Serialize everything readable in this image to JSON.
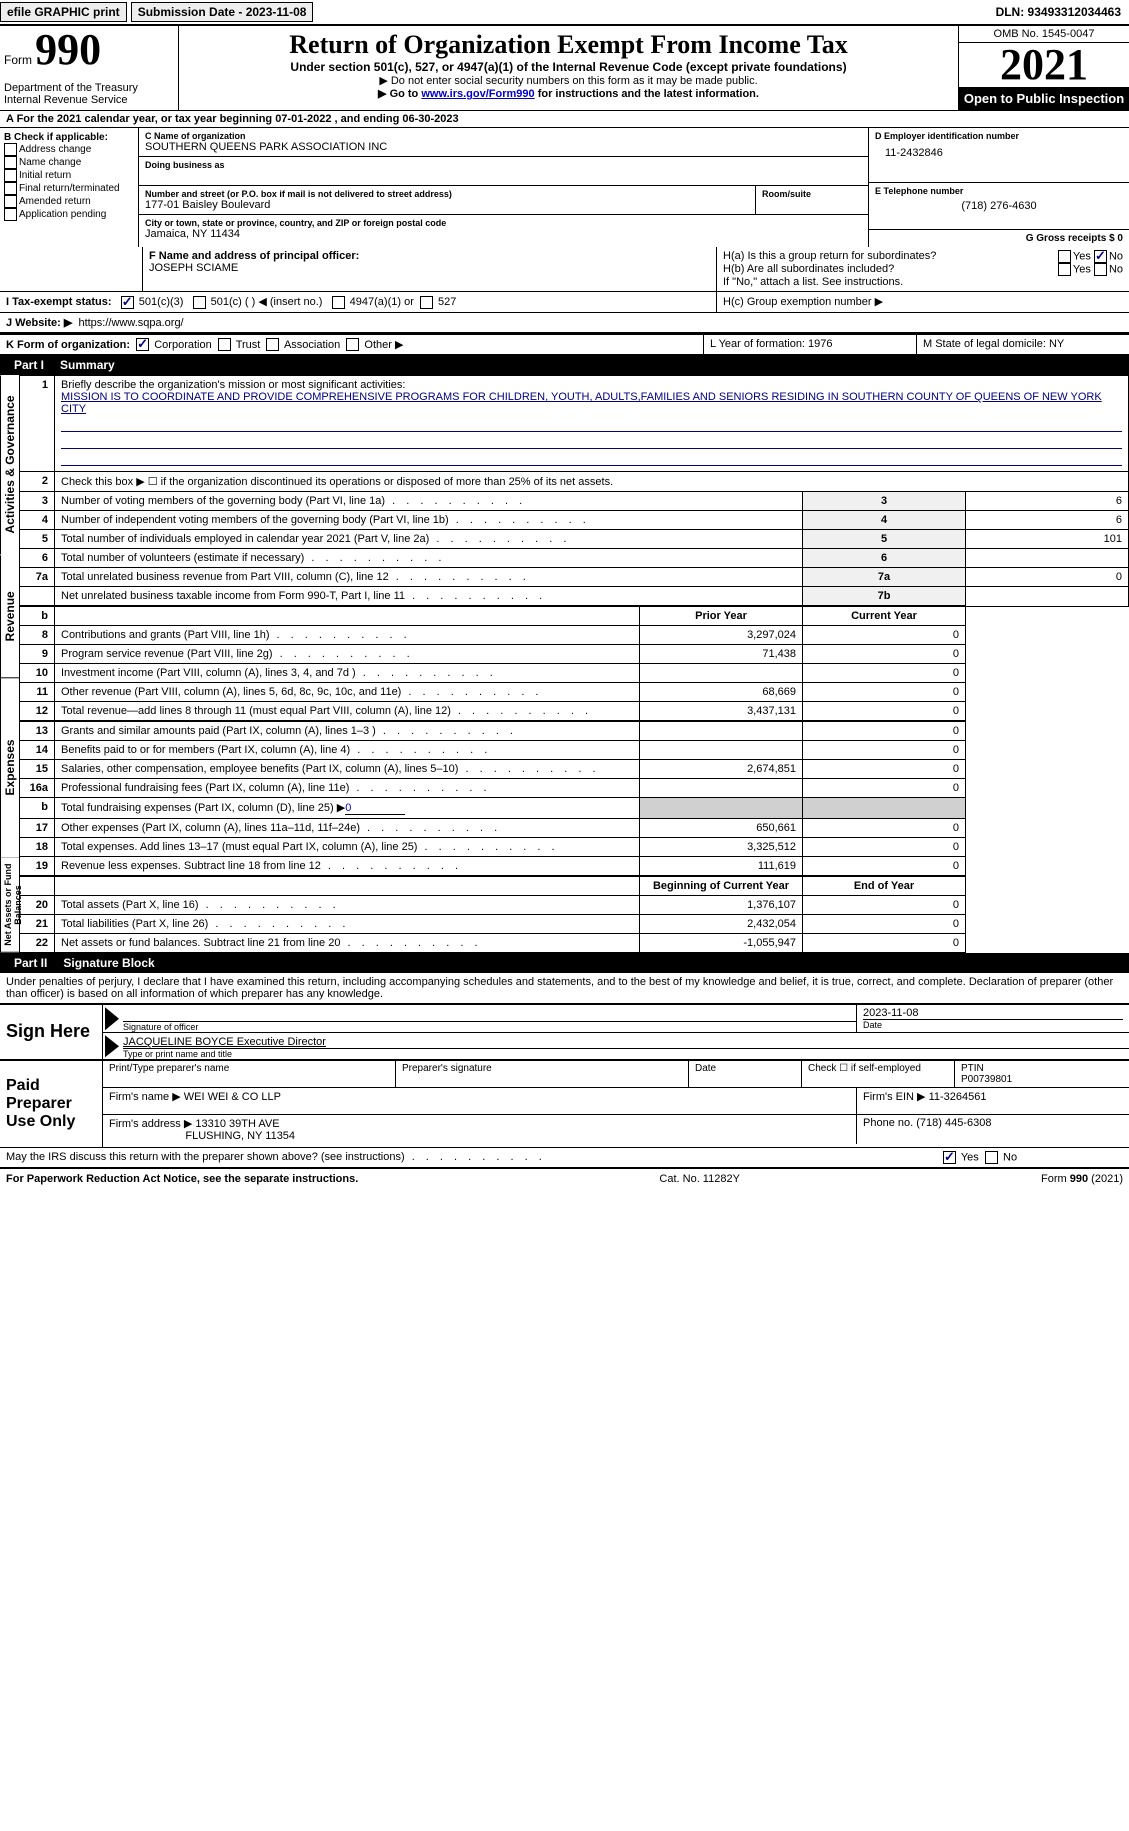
{
  "topbar": {
    "efile": "efile GRAPHIC print",
    "submission_label": "Submission Date - 2023-11-08",
    "dln": "DLN: 93493312034463"
  },
  "header": {
    "form_word": "Form",
    "form_num": "990",
    "dept": "Department of the Treasury",
    "irs": "Internal Revenue Service",
    "title": "Return of Organization Exempt From Income Tax",
    "sub": "Under section 501(c), 527, or 4947(a)(1) of the Internal Revenue Code (except private foundations)",
    "note1": "▶ Do not enter social security numbers on this form as it may be made public.",
    "note2_pre": "▶ Go to ",
    "note2_link": "www.irs.gov/Form990",
    "note2_post": " for instructions and the latest information.",
    "omb": "OMB No. 1545-0047",
    "year": "2021",
    "open": "Open to Public Inspection"
  },
  "lineA": "A  For the 2021 calendar year, or tax year beginning 07-01-2022   , and ending 06-30-2023",
  "colB": {
    "title": "B Check if applicable:",
    "items": [
      "Address change",
      "Name change",
      "Initial return",
      "Final return/terminated",
      "Amended return",
      "Application pending"
    ]
  },
  "colC": {
    "name_label": "C Name of organization",
    "name": "SOUTHERN QUEENS PARK ASSOCIATION INC",
    "dba_label": "Doing business as",
    "addr_label": "Number and street (or P.O. box if mail is not delivered to street address)",
    "room_label": "Room/suite",
    "addr": "177-01 Baisley Boulevard",
    "city_label": "City or town, state or province, country, and ZIP or foreign postal code",
    "city": "Jamaica, NY  11434"
  },
  "colD": {
    "ein_label": "D Employer identification number",
    "ein": "11-2432846",
    "phone_label": "E Telephone number",
    "phone": "(718) 276-4630",
    "gross_label": "G Gross receipts $ 0"
  },
  "rowF": {
    "label": "F Name and address of principal officer:",
    "name": "JOSEPH SCIAME"
  },
  "rowH": {
    "ha": "H(a)  Is this a group return for subordinates?",
    "hb": "H(b)  Are all subordinates included?",
    "hb_note": "If \"No,\" attach a list. See instructions.",
    "hc": "H(c)  Group exemption number ▶",
    "yes": "Yes",
    "no": "No"
  },
  "rowI": {
    "label": "I  Tax-exempt status:",
    "opt1": "501(c)(3)",
    "opt2": "501(c) (  ) ◀ (insert no.)",
    "opt3": "4947(a)(1) or",
    "opt4": "527"
  },
  "rowJ": {
    "label": "J  Website: ▶",
    "val": "https://www.sqpa.org/"
  },
  "rowK": {
    "label": "K Form of organization:",
    "corp": "Corporation",
    "trust": "Trust",
    "assoc": "Association",
    "other": "Other ▶"
  },
  "rowL": {
    "label": "L Year of formation: 1976"
  },
  "rowM": {
    "label": "M State of legal domicile: NY"
  },
  "part1": {
    "label": "Part I",
    "title": "Summary"
  },
  "summary": {
    "sideA": "Activities & Governance",
    "sideR": "Revenue",
    "sideE": "Expenses",
    "sideN": "Net Assets or Fund Balances",
    "q1": "Briefly describe the organization's mission or most significant activities:",
    "mission": "MISSION IS TO COORDINATE AND PROVIDE COMPREHENSIVE PROGRAMS FOR CHILDREN, YOUTH, ADULTS,FAMILIES AND SENIORS RESIDING IN SOUTHERN COUNTY OF QUEENS OF NEW YORK CITY",
    "q2": "Check this box ▶ ☐ if the organization discontinued its operations or disposed of more than 25% of its net assets.",
    "lines": [
      {
        "n": "3",
        "t": "Number of voting members of the governing body (Part VI, line 1a)",
        "box": "3",
        "v": "6"
      },
      {
        "n": "4",
        "t": "Number of independent voting members of the governing body (Part VI, line 1b)",
        "box": "4",
        "v": "6"
      },
      {
        "n": "5",
        "t": "Total number of individuals employed in calendar year 2021 (Part V, line 2a)",
        "box": "5",
        "v": "101"
      },
      {
        "n": "6",
        "t": "Total number of volunteers (estimate if necessary)",
        "box": "6",
        "v": ""
      },
      {
        "n": "7a",
        "t": "Total unrelated business revenue from Part VIII, column (C), line 12",
        "box": "7a",
        "v": "0"
      },
      {
        "n": "",
        "t": "Net unrelated business taxable income from Form 990-T, Part I, line 11",
        "box": "7b",
        "v": ""
      }
    ],
    "col_prior": "Prior Year",
    "col_current": "Current Year",
    "rev": [
      {
        "n": "8",
        "t": "Contributions and grants (Part VIII, line 1h)",
        "p": "3,297,024",
        "c": "0"
      },
      {
        "n": "9",
        "t": "Program service revenue (Part VIII, line 2g)",
        "p": "71,438",
        "c": "0"
      },
      {
        "n": "10",
        "t": "Investment income (Part VIII, column (A), lines 3, 4, and 7d )",
        "p": "",
        "c": "0"
      },
      {
        "n": "11",
        "t": "Other revenue (Part VIII, column (A), lines 5, 6d, 8c, 9c, 10c, and 11e)",
        "p": "68,669",
        "c": "0"
      },
      {
        "n": "12",
        "t": "Total revenue—add lines 8 through 11 (must equal Part VIII, column (A), line 12)",
        "p": "3,437,131",
        "c": "0"
      }
    ],
    "exp": [
      {
        "n": "13",
        "t": "Grants and similar amounts paid (Part IX, column (A), lines 1–3 )",
        "p": "",
        "c": "0"
      },
      {
        "n": "14",
        "t": "Benefits paid to or for members (Part IX, column (A), line 4)",
        "p": "",
        "c": "0"
      },
      {
        "n": "15",
        "t": "Salaries, other compensation, employee benefits (Part IX, column (A), lines 5–10)",
        "p": "2,674,851",
        "c": "0"
      },
      {
        "n": "16a",
        "t": "Professional fundraising fees (Part IX, column (A), line 11e)",
        "p": "",
        "c": "0"
      },
      {
        "n": "b",
        "t": "Total fundraising expenses (Part IX, column (D), line 25) ▶",
        "p": "gray",
        "c": "gray",
        "u": "0"
      },
      {
        "n": "17",
        "t": "Other expenses (Part IX, column (A), lines 11a–11d, 11f–24e)",
        "p": "650,661",
        "c": "0"
      },
      {
        "n": "18",
        "t": "Total expenses. Add lines 13–17 (must equal Part IX, column (A), line 25)",
        "p": "3,325,512",
        "c": "0"
      },
      {
        "n": "19",
        "t": "Revenue less expenses. Subtract line 18 from line 12",
        "p": "111,619",
        "c": "0"
      }
    ],
    "col_begin": "Beginning of Current Year",
    "col_end": "End of Year",
    "net": [
      {
        "n": "20",
        "t": "Total assets (Part X, line 16)",
        "p": "1,376,107",
        "c": "0"
      },
      {
        "n": "21",
        "t": "Total liabilities (Part X, line 26)",
        "p": "2,432,054",
        "c": "0"
      },
      {
        "n": "22",
        "t": "Net assets or fund balances. Subtract line 21 from line 20",
        "p": "-1,055,947",
        "c": "0"
      }
    ]
  },
  "part2": {
    "label": "Part II",
    "title": "Signature Block",
    "penalty": "Under penalties of perjury, I declare that I have examined this return, including accompanying schedules and statements, and to the best of my knowledge and belief, it is true, correct, and complete. Declaration of preparer (other than officer) is based on all information of which preparer has any knowledge."
  },
  "sign": {
    "here": "Sign Here",
    "sig_label": "Signature of officer",
    "date_label": "Date",
    "date": "2023-11-08",
    "name": "JACQUELINE BOYCE  Executive Director",
    "name_label": "Type or print name and title"
  },
  "preparer": {
    "title": "Paid Preparer Use Only",
    "print_label": "Print/Type preparer's name",
    "sig_label": "Preparer's signature",
    "date_label": "Date",
    "check_label": "Check ☐ if self-employed",
    "ptin_label": "PTIN",
    "ptin": "P00739801",
    "firm_name_label": "Firm's name    ▶",
    "firm_name": "WEI WEI & CO LLP",
    "firm_ein_label": "Firm's EIN ▶",
    "firm_ein": "11-3264561",
    "firm_addr_label": "Firm's address ▶",
    "firm_addr": "13310 39TH AVE",
    "firm_city": "FLUSHING, NY  11354",
    "phone_label": "Phone no.",
    "phone": "(718) 445-6308"
  },
  "may_discuss": "May the IRS discuss this return with the preparer shown above? (see instructions)",
  "footer": {
    "left": "For Paperwork Reduction Act Notice, see the separate instructions.",
    "mid": "Cat. No. 11282Y",
    "right": "Form 990 (2021)"
  }
}
